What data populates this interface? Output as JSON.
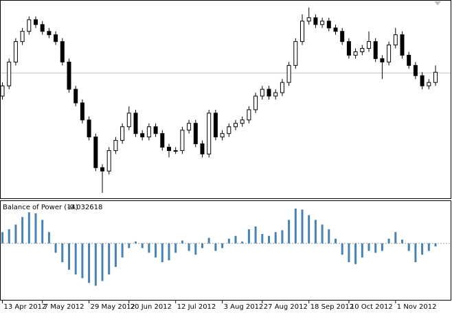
{
  "chart_data": [
    {
      "type": "candlestick",
      "color": "#000000",
      "hline": 184,
      "ylim": [
        0,
        290
      ],
      "open": [
        150,
        165,
        200,
        230,
        245,
        262,
        255,
        245,
        240,
        230,
        200,
        160,
        140,
        115,
        90,
        45,
        40,
        70,
        85,
        105,
        125,
        95,
        90,
        105,
        95,
        75,
        70,
        70,
        100,
        110,
        80,
        65,
        125,
        90,
        95,
        105,
        110,
        115,
        130,
        150,
        160,
        150,
        155,
        170,
        195,
        230,
        260,
        265,
        255,
        260,
        250,
        245,
        230,
        210,
        215,
        220,
        230,
        205,
        200,
        225,
        240,
        210,
        195,
        180,
        165,
        170
      ],
      "high": [
        170,
        205,
        235,
        250,
        267,
        267,
        260,
        250,
        245,
        235,
        205,
        165,
        145,
        120,
        95,
        50,
        75,
        90,
        110,
        135,
        130,
        100,
        110,
        110,
        100,
        80,
        75,
        105,
        115,
        115,
        85,
        130,
        130,
        100,
        110,
        115,
        120,
        135,
        155,
        165,
        165,
        160,
        175,
        200,
        235,
        270,
        280,
        270,
        265,
        265,
        255,
        250,
        235,
        220,
        225,
        245,
        235,
        210,
        230,
        250,
        245,
        215,
        200,
        185,
        175,
        195
      ],
      "low": [
        145,
        160,
        195,
        225,
        240,
        250,
        240,
        235,
        225,
        195,
        155,
        135,
        110,
        85,
        40,
        8,
        35,
        65,
        80,
        100,
        90,
        85,
        85,
        90,
        70,
        60,
        65,
        65,
        95,
        75,
        60,
        60,
        85,
        85,
        90,
        100,
        105,
        110,
        125,
        145,
        145,
        145,
        150,
        165,
        190,
        225,
        255,
        250,
        250,
        245,
        240,
        225,
        205,
        205,
        210,
        215,
        200,
        175,
        195,
        220,
        205,
        190,
        175,
        160,
        160,
        165
      ],
      "close": [
        165,
        200,
        230,
        245,
        262,
        255,
        245,
        240,
        230,
        200,
        160,
        140,
        115,
        90,
        45,
        40,
        70,
        85,
        105,
        125,
        95,
        90,
        105,
        95,
        75,
        70,
        70,
        100,
        110,
        80,
        65,
        125,
        90,
        95,
        105,
        110,
        115,
        130,
        150,
        160,
        150,
        155,
        170,
        195,
        230,
        260,
        265,
        255,
        260,
        250,
        245,
        230,
        210,
        215,
        220,
        230,
        205,
        200,
        225,
        240,
        210,
        195,
        180,
        165,
        170,
        185
      ]
    },
    {
      "type": "bar",
      "title": "Balance of Power (14)",
      "color": "#4682b4",
      "ylim": [
        -0.6,
        0.45
      ],
      "values": [
        0.12,
        0.15,
        0.2,
        0.28,
        0.33,
        0.32,
        0.25,
        0.12,
        -0.1,
        -0.2,
        -0.28,
        -0.33,
        -0.37,
        -0.42,
        -0.45,
        -0.4,
        -0.33,
        -0.25,
        -0.15,
        -0.05,
        0.02,
        -0.05,
        -0.1,
        -0.15,
        -0.2,
        -0.18,
        -0.1,
        0.03,
        -0.08,
        -0.12,
        -0.05,
        0.06,
        -0.08,
        -0.05,
        0.05,
        0.08,
        0.02,
        0.15,
        0.18,
        0.1,
        0.08,
        0.12,
        0.14,
        0.25,
        0.37,
        0.36,
        0.3,
        0.25,
        0.2,
        0.15,
        0.05,
        -0.12,
        -0.2,
        -0.22,
        -0.15,
        -0.08,
        -0.1,
        -0.08,
        0.05,
        0.12,
        0.04,
        -0.08,
        -0.2,
        -0.12,
        -0.08,
        -0.032618
      ],
      "xticks": [
        {
          "value": 0,
          "label": "13 Apr 2012"
        },
        {
          "value": 6,
          "label": "7 May 2012"
        },
        {
          "value": 13,
          "label": "29 May 2012"
        },
        {
          "value": 19,
          "label": "20 Jun 2012"
        },
        {
          "value": 26,
          "label": "12 Jul 2012"
        },
        {
          "value": 33,
          "label": "3 Aug 2012"
        },
        {
          "value": 39,
          "label": "27 Aug 2012"
        },
        {
          "value": 46,
          "label": "18 Sep 2012"
        },
        {
          "value": 52,
          "label": "10 Oct 2012"
        },
        {
          "value": 59,
          "label": "1 Nov 2012"
        }
      ]
    }
  ]
}
